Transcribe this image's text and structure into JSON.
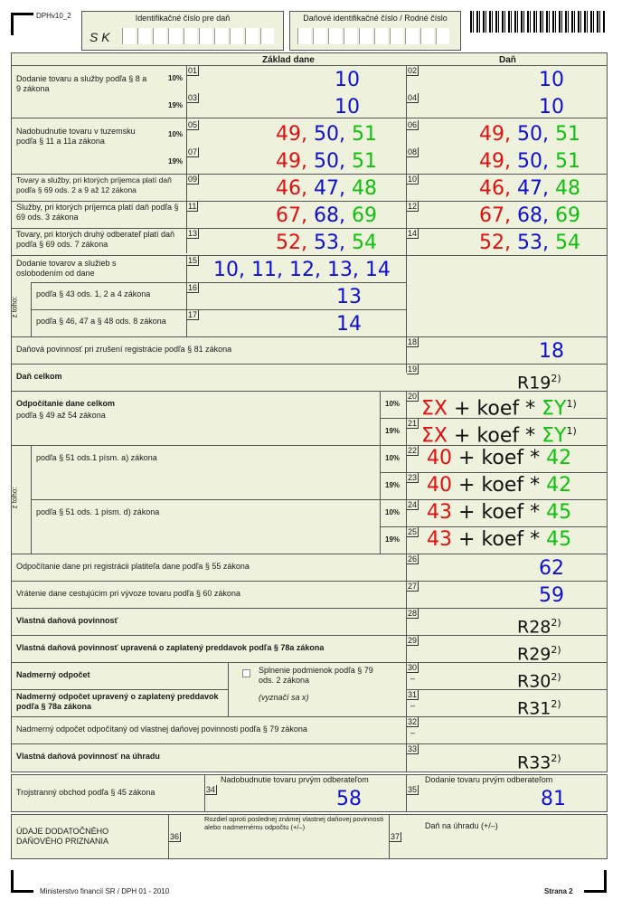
{
  "header": {
    "form_code": "DPHv10_2",
    "ic_label": "Identifikačné číslo pre daň",
    "ic_value": "S K",
    "dic_label": "Daňové identifikačné číslo / Rodné číslo"
  },
  "columns": {
    "base": "Základ dane",
    "tax": "Daň"
  },
  "rows": {
    "r1_label": "Dodanie tovaru a služby podľa § 8 a 9 zákona",
    "r1_pct10": "10%",
    "r1_pct19": "19%",
    "r5_label": "Nadobudnutie tovaru v tuzemsku podľa § 11 a 11a zákona",
    "r5_pct10": "10%",
    "r5_pct19": "19%",
    "r9_label": "Tovary a služby, pri ktorých príjemca platí daň podľa § 69 ods. 2 a 9 až 12 zákona",
    "r11_label": "Služby, pri ktorých príjemca platí daň podľa § 69 ods. 3 zákona",
    "r13_label": "Tovary, pri ktorých druhý odberateľ platí daň podľa § 69 ods. 7 zákona",
    "r15_label": "Dodanie tovarov a služieb s oslobodením od dane",
    "z_toho": "z toho:",
    "r16_label": "podľa § 43 ods. 1, 2 a 4 zákona",
    "r17_label": "podľa § 46, 47 a § 48 ods. 8 zákona",
    "r18_label": "Daňová povinnosť pri zrušení registrácie podľa § 81 zákona",
    "r19_label": "Daň celkom",
    "r20_label": "Odpočítanie dane celkom",
    "r20_sub": "podľa § 49 až 54 zákona",
    "r22_label": "podľa § 51 ods.1 písm. a) zákona",
    "r24_label": "podľa § 51 ods. 1 písm. d) zákona",
    "r26_label": "Odpočítanie dane pri registrácii platiteľa dane podľa § 55 zákona",
    "r27_label": "Vrátenie dane cestujúcim pri vývoze tovaru podľa § 60 zákona",
    "r28_label": "Vlastná daňová povinnosť",
    "r29_label": "Vlastná daňová povinnosť upravená o zaplatený preddavok podľa § 78a zákona",
    "r30_label": "Nadmerný odpočet",
    "r30_check": "Splnenie podmienok podľa § 79 ods. 2 zákona",
    "r30_hint": "(vyznačí sa x)",
    "r31_label": "Nadmerný odpočet upravený o zaplatený preddavok podľa § 78a zákona",
    "r32_label": "Nadmerný odpočet odpočítaný od vlastnej daňovej povinnosti podľa § 79 zákona",
    "r33_label": "Vlastná daňová povinnosť na úhradu",
    "r34_head": "Nadobudnutie tovaru prvým odberateľom",
    "r35_head": "Dodanie tovaru prvým odberateľom",
    "r34_label": "Trojstranný obchod podľa § 45 zákona",
    "r36_head": "Rozdiel oproti poslednej známej vlastnej daňovej povinnosti alebo nadmernému odpočtu (+/–)",
    "r37_head": "Daň na úhradu (+/–)",
    "r36_label": "ÚDAJE DODATOČNÉHO DAŇOVÉHO PRIZNANIA"
  },
  "values": {
    "v01": "10",
    "v02": "10",
    "v03": "10",
    "v04": "10",
    "v05a": "49,",
    "v05b": "50,",
    "v05c": "51",
    "v07a": "49,",
    "v07b": "50,",
    "v07c": "51",
    "v09a": "46,",
    "v09b": "47,",
    "v09c": "48",
    "v11a": "67,",
    "v11b": "68,",
    "v11c": "69",
    "v13a": "52,",
    "v13b": "53,",
    "v13c": "54",
    "v15": "10, 11, 12, 13, 14",
    "v16": "13",
    "v17": "14",
    "v18": "18",
    "v19": "R19",
    "v19sup": "2)",
    "v20a": "ΣX",
    "v20b": "+ koef *",
    "v20c": "ΣY",
    "v20sup": "1)",
    "v22a": "40",
    "v22b": "+ koef *",
    "v22c": "42",
    "v24a": "43",
    "v24b": "+ koef *",
    "v24c": "45",
    "v26": "62",
    "v27": "59",
    "v28": "R28",
    "v29": "R29",
    "v30": "R30",
    "v31": "R31",
    "v33": "R33",
    "sup2": "2)",
    "v34": "58",
    "v35": "81",
    "dash": "–"
  },
  "line_numbers": [
    "01",
    "02",
    "03",
    "04",
    "05",
    "06",
    "07",
    "08",
    "09",
    "10",
    "11",
    "12",
    "13",
    "14",
    "15",
    "16",
    "17",
    "18",
    "19",
    "20",
    "21",
    "22",
    "23",
    "24",
    "25",
    "26",
    "27",
    "28",
    "29",
    "30",
    "31",
    "32",
    "33",
    "34",
    "35",
    "36",
    "37"
  ],
  "footer": {
    "left": "Ministerstvo financií SR / DPH 01 - 2010",
    "right": "Strana 2"
  },
  "colors": {
    "panel": "#eef2dc",
    "red": "#e01010",
    "blue": "#1010d0",
    "green": "#10c010"
  }
}
